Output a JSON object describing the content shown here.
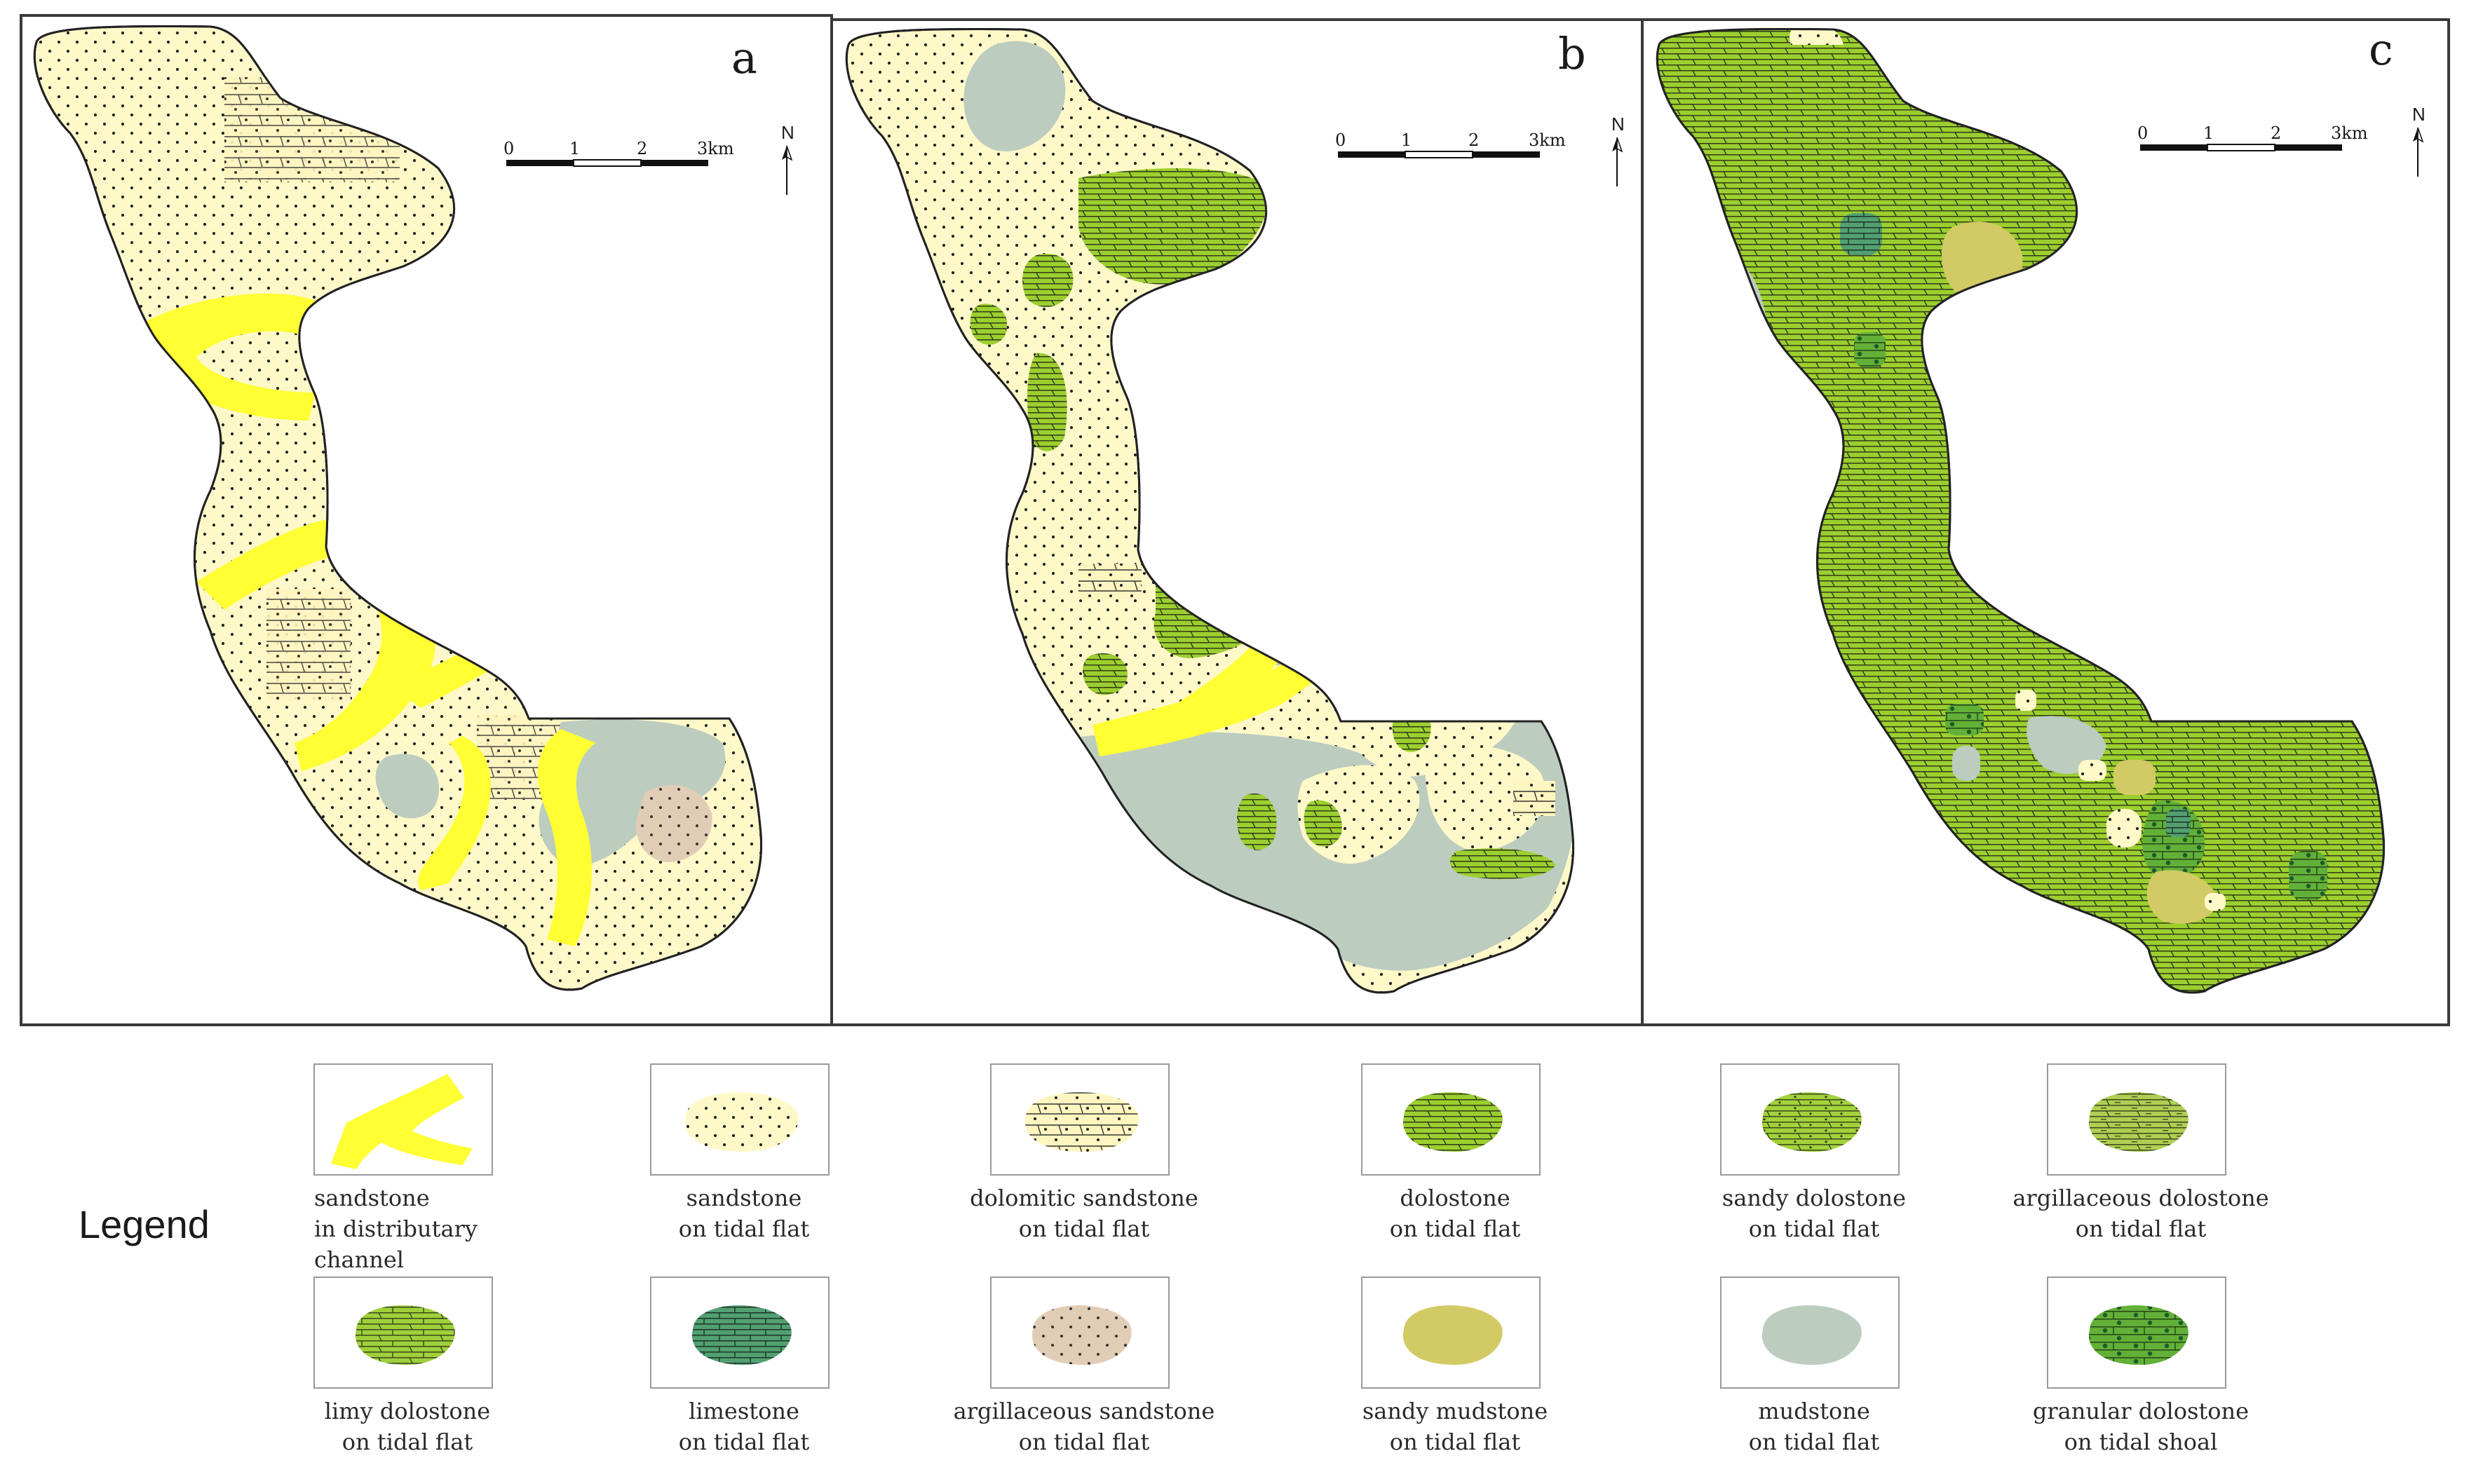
{
  "panels": [
    {
      "label": "a"
    },
    {
      "label": "b"
    },
    {
      "label": "c"
    }
  ],
  "scale_bar": {
    "ticks": [
      "0",
      "1",
      "2",
      "3km"
    ]
  },
  "north_arrow": {
    "label": "N"
  },
  "legend": {
    "title": "Legend",
    "items": [
      {
        "id": "channel",
        "lines": [
          "sandstone",
          "in distributary",
          "channel"
        ],
        "fill": "#ffff33",
        "pattern": "solid",
        "shape": "channel",
        "align": "start"
      },
      {
        "id": "sand",
        "lines": [
          "sandstone",
          "on  tidal  flat"
        ],
        "fill": "#fff8c9",
        "pattern": "dots"
      },
      {
        "id": "dolsand",
        "lines": [
          "dolomitic sandstone",
          "on tidal flat"
        ],
        "fill": "#fff5c0",
        "pattern": "dolsand"
      },
      {
        "id": "dolo",
        "lines": [
          "dolostone",
          "on  tidal  flat"
        ],
        "fill": "#9ccf2e",
        "pattern": "bricks"
      },
      {
        "id": "sandydolo",
        "lines": [
          "sandy dolostone",
          "on tidal flat"
        ],
        "fill": "#a3d23a",
        "pattern": "bricks-dots"
      },
      {
        "id": "argdolo",
        "lines": [
          "argillaceous dolostone",
          "on tidal flat"
        ],
        "fill": "#b0cf52",
        "pattern": "bricks-dash"
      },
      {
        "id": "limydolo",
        "lines": [
          "limy  dolostone",
          "on  tidal flat"
        ],
        "fill": "#9fd03a",
        "pattern": "bricks-diag"
      },
      {
        "id": "lime",
        "lines": [
          "limestone",
          "on tidal flat"
        ],
        "fill": "#52a072",
        "pattern": "bricks"
      },
      {
        "id": "argsand",
        "lines": [
          "argillaceous sandstone",
          "on tidal flat"
        ],
        "fill": "#e1cdb6",
        "pattern": "dots"
      },
      {
        "id": "sandymud",
        "lines": [
          "sandy  mudstone",
          "on  tidal  flat"
        ],
        "fill": "#d2cb65",
        "pattern": "solid"
      },
      {
        "id": "mud",
        "lines": [
          "mudstone",
          "on  tidal  flat"
        ],
        "fill": "#bcccbf",
        "pattern": "solid"
      },
      {
        "id": "granular",
        "lines": [
          "granular dolostone",
          "on tidal shoal"
        ],
        "fill": "#62b038",
        "pattern": "granular"
      }
    ]
  },
  "colors": {
    "channel": "#ffff33",
    "sand": "#fff8c9",
    "dolo": "#9ccf2e",
    "lime": "#52a072",
    "argsand": "#e1cdb6",
    "sandymud": "#d2cb65",
    "mud": "#bcccbf",
    "granular": "#62b038",
    "frame": "#3a3a3a"
  }
}
